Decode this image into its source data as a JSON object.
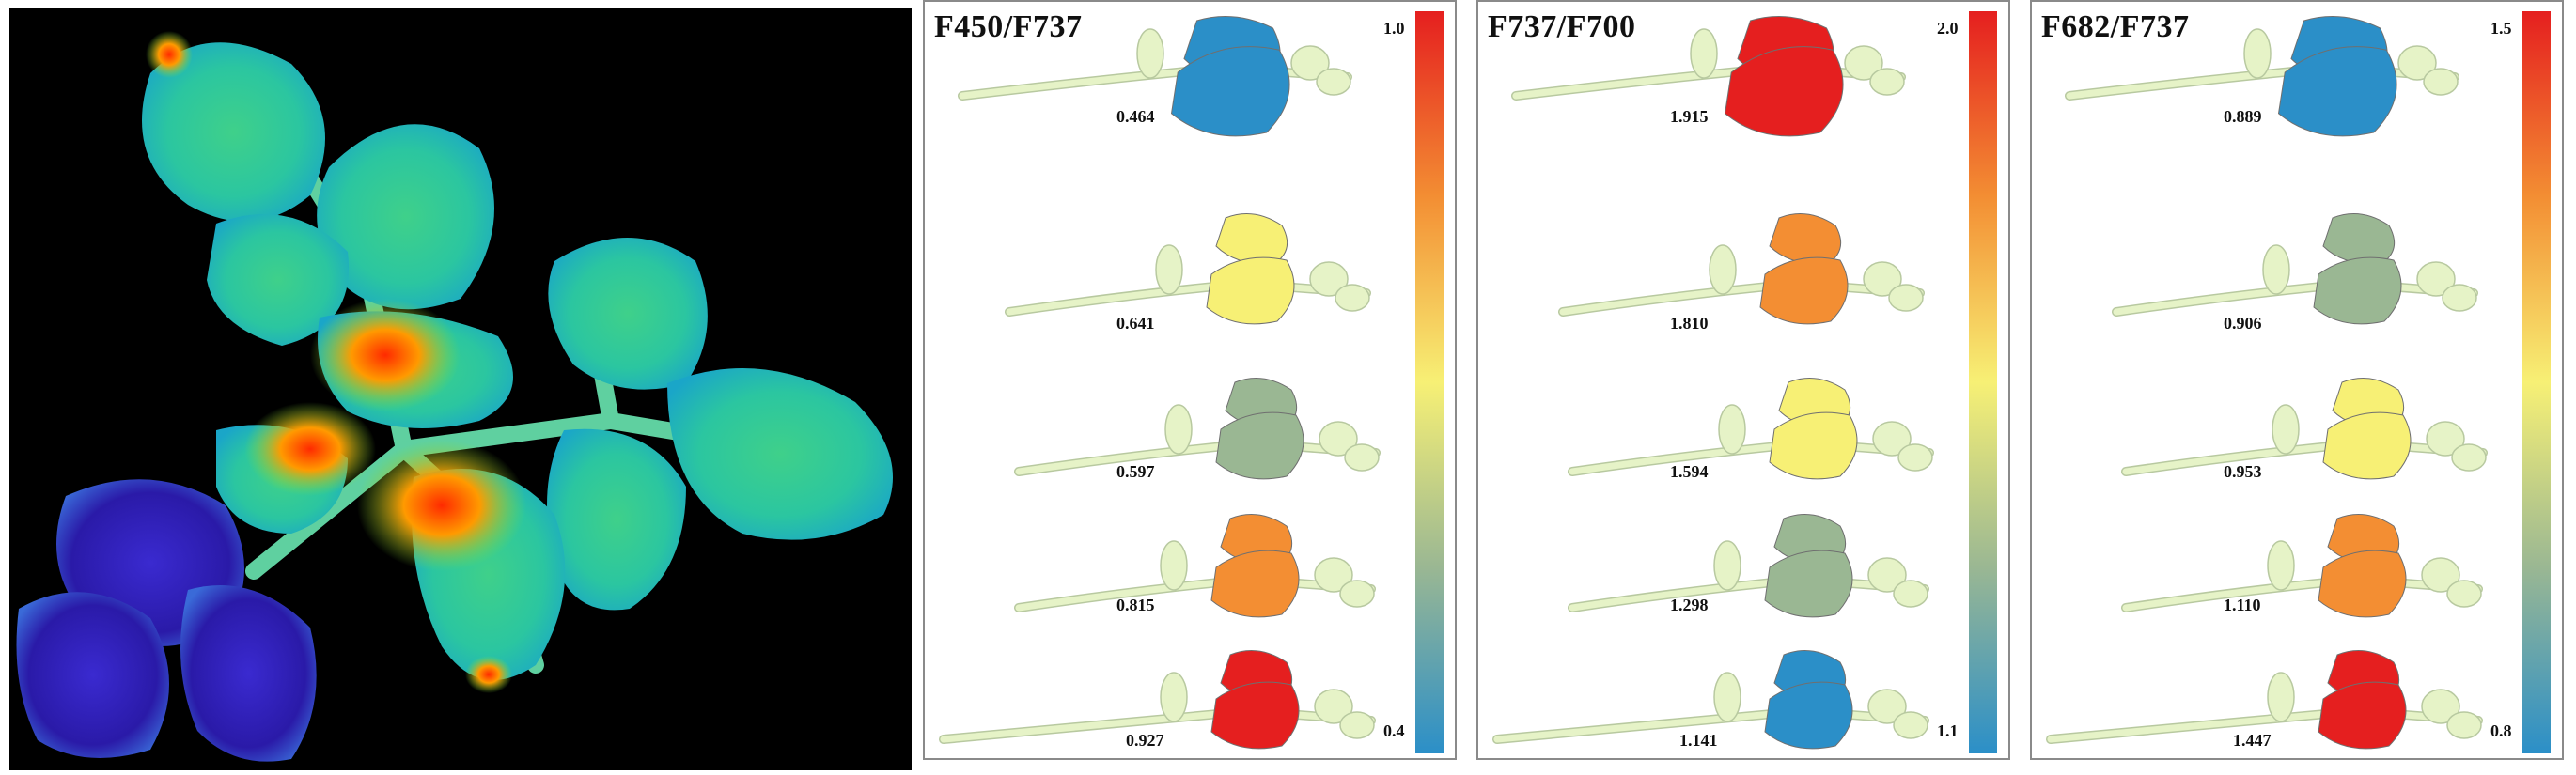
{
  "panels": [
    {
      "title": "F450/F737",
      "scale_max": "1.0",
      "scale_min": "0.4",
      "plants": [
        {
          "value": "0.464",
          "color": "#2b8fc8"
        },
        {
          "value": "0.641",
          "color": "#f7f075"
        },
        {
          "value": "0.597",
          "color": "#9ab793"
        },
        {
          "value": "0.815",
          "color": "#f38e33"
        },
        {
          "value": "0.927",
          "color": "#e51f1f"
        }
      ]
    },
    {
      "title": "F737/F700",
      "scale_max": "2.0",
      "scale_min": "1.1",
      "plants": [
        {
          "value": "1.915",
          "color": "#e51f1f"
        },
        {
          "value": "1.810",
          "color": "#f38e33"
        },
        {
          "value": "1.594",
          "color": "#f7f075"
        },
        {
          "value": "1.298",
          "color": "#9ab793"
        },
        {
          "value": "1.141",
          "color": "#2b8fc8"
        }
      ]
    },
    {
      "title": "F682/F737",
      "scale_max": "1.5",
      "scale_min": "0.8",
      "plants": [
        {
          "value": "0.889",
          "color": "#2b8fc8"
        },
        {
          "value": "0.906",
          "color": "#9ab793"
        },
        {
          "value": "0.953",
          "color": "#f7f075"
        },
        {
          "value": "1.110",
          "color": "#f38e33"
        },
        {
          "value": "1.447",
          "color": "#e51f1f"
        }
      ]
    }
  ],
  "colors": {
    "stem": "#e6f3c7",
    "stem_outline": "#b8c9a0",
    "colorbar_top": "#e51f1f",
    "colorbar_upper": "#f38e33",
    "colorbar_mid": "#f7f075",
    "colorbar_lower": "#9ab793",
    "colorbar_bottom": "#2b8fc8"
  }
}
